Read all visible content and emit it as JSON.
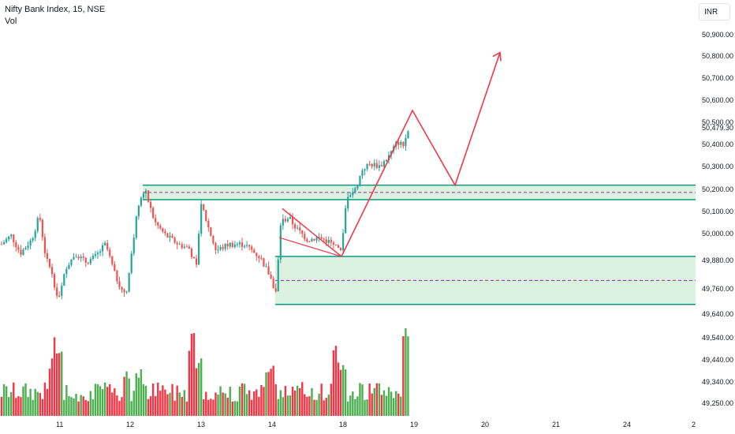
{
  "header": {
    "title": "Nifty Bank Index, 15, NSE",
    "volume_label": "Vol"
  },
  "currency_button": {
    "label": "INR"
  },
  "colors": {
    "up": "#26a69a",
    "down": "#ef5350",
    "vol_up": "#4caf50",
    "vol_down": "#f23645",
    "zone_border": "#089981",
    "zone_fill": "#d7efdc",
    "projection": "#f23645",
    "mid_dash": "#9c27b0"
  },
  "chart_data": {
    "type": "candlestick",
    "y_ticks": [
      "50,900.00",
      "50,800.00",
      "50,700.00",
      "50,600.00",
      "50,500.00",
      "50,400.00",
      "50,300.00",
      "50,200.00",
      "50,100.00",
      "50,000.00",
      "49,880.00",
      "49,760.00",
      "49,640.00",
      "49,540.00",
      "49,440.00",
      "49,340.00",
      "49,250.00"
    ],
    "current_price_label": "50,479.30",
    "x_ticks": [
      {
        "label": "11",
        "date": "11"
      },
      {
        "label": "12",
        "date": "12"
      },
      {
        "label": "13",
        "date": "13"
      },
      {
        "label": "14",
        "date": "14"
      },
      {
        "label": "18",
        "date": "18"
      },
      {
        "label": "19",
        "date": "19"
      },
      {
        "label": "20",
        "date": "20"
      },
      {
        "label": "21",
        "date": "21"
      },
      {
        "label": "24",
        "date": "24"
      },
      {
        "label": "2",
        "date": "2"
      }
    ],
    "zones": [
      {
        "name": "upper-zone",
        "top": 50225,
        "bottom": 50160
      },
      {
        "name": "lower-zone",
        "top": 49905,
        "bottom": 49690
      }
    ],
    "projection_path": [
      [
        49905,
        "18"
      ],
      [
        50560,
        "19"
      ],
      [
        50225,
        "19.6"
      ],
      [
        50820,
        "20.2"
      ]
    ],
    "note_candles": "Approx. 15-min Nifty Bank candles with volume bars, 11 to 19"
  }
}
